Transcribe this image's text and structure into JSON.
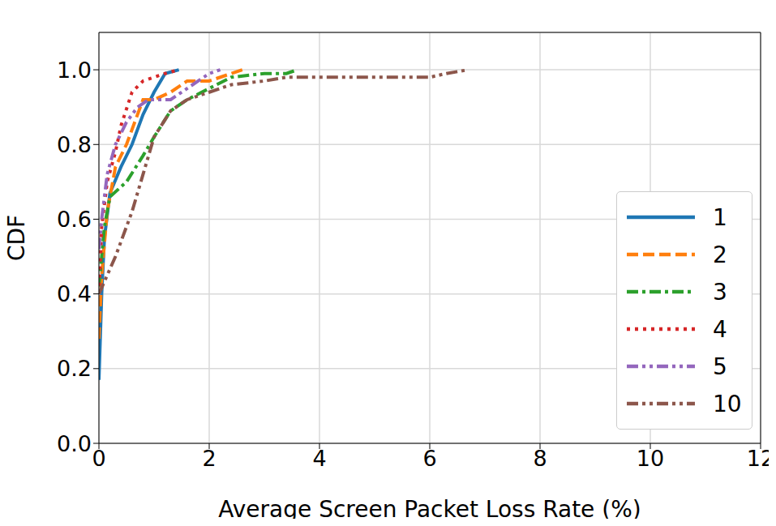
{
  "chart_data": {
    "type": "line",
    "x_label": "Average Screen Packet Loss Rate (%)",
    "y_label": "CDF",
    "xlim": [
      0,
      12
    ],
    "xticks": [
      0,
      2,
      4,
      6,
      8,
      10,
      12
    ],
    "ylim": [
      0,
      1.1
    ],
    "yticks": [
      {
        "value": 0,
        "label": "0.0"
      },
      {
        "value": 0.2,
        "label": "0.2"
      },
      {
        "value": 0.4,
        "label": "0.4"
      },
      {
        "value": 0.6,
        "label": "0.6"
      },
      {
        "value": 0.8,
        "label": "0.8"
      },
      {
        "value": 1.0,
        "label": "1.0"
      }
    ],
    "grid": true,
    "legend": "lower right",
    "series": [
      {
        "name": "1",
        "color": "#1f77b4",
        "line_style": "solid",
        "x": [
          0,
          0.05,
          0.1,
          0.2,
          0.4,
          0.6,
          0.8,
          1.0,
          1.2,
          1.45
        ],
        "values": [
          0.17,
          0.4,
          0.55,
          0.67,
          0.74,
          0.8,
          0.88,
          0.94,
          0.99,
          1.0
        ]
      },
      {
        "name": "2",
        "color": "#ff7f0e",
        "line_style": "dashed",
        "x": [
          0,
          0.05,
          0.15,
          0.3,
          0.5,
          0.7,
          0.8,
          1.0,
          1.3,
          1.6,
          2.0,
          2.4,
          2.6
        ],
        "values": [
          0.28,
          0.45,
          0.62,
          0.74,
          0.8,
          0.88,
          0.92,
          0.92,
          0.94,
          0.97,
          0.97,
          0.99,
          1.0
        ]
      },
      {
        "name": "3",
        "color": "#2ca02c",
        "line_style": "dashdot",
        "x": [
          0,
          0.1,
          0.2,
          0.5,
          0.8,
          1.0,
          1.3,
          1.6,
          2.0,
          2.4,
          3.0,
          3.4,
          3.6
        ],
        "values": [
          0.42,
          0.58,
          0.66,
          0.7,
          0.77,
          0.82,
          0.89,
          0.92,
          0.95,
          0.98,
          0.99,
          0.99,
          1.0
        ]
      },
      {
        "name": "4",
        "color": "#d62728",
        "line_style": "dotted",
        "x": [
          0,
          0.05,
          0.15,
          0.3,
          0.4,
          0.6,
          0.8,
          1.2,
          1.45
        ],
        "values": [
          0.4,
          0.58,
          0.7,
          0.78,
          0.85,
          0.94,
          0.97,
          0.99,
          1.0
        ]
      },
      {
        "name": "5",
        "color": "#9467bd",
        "line_style": "dashdotdot",
        "x": [
          0,
          0.05,
          0.15,
          0.3,
          0.5,
          0.7,
          0.9,
          1.3,
          1.6,
          2.0,
          2.2
        ],
        "values": [
          0.52,
          0.6,
          0.72,
          0.8,
          0.86,
          0.9,
          0.92,
          0.92,
          0.95,
          0.99,
          1.0
        ]
      },
      {
        "name": "10",
        "color": "#8c564b",
        "line_style": "dashdotdot",
        "x": [
          0,
          0.3,
          0.6,
          0.8,
          1.0,
          1.3,
          1.6,
          2.0,
          2.4,
          3.0,
          3.4,
          5.0,
          6.0,
          6.3,
          6.7
        ],
        "values": [
          0.4,
          0.5,
          0.62,
          0.72,
          0.82,
          0.89,
          0.92,
          0.94,
          0.96,
          0.97,
          0.98,
          0.98,
          0.98,
          0.99,
          1.0
        ]
      }
    ]
  }
}
